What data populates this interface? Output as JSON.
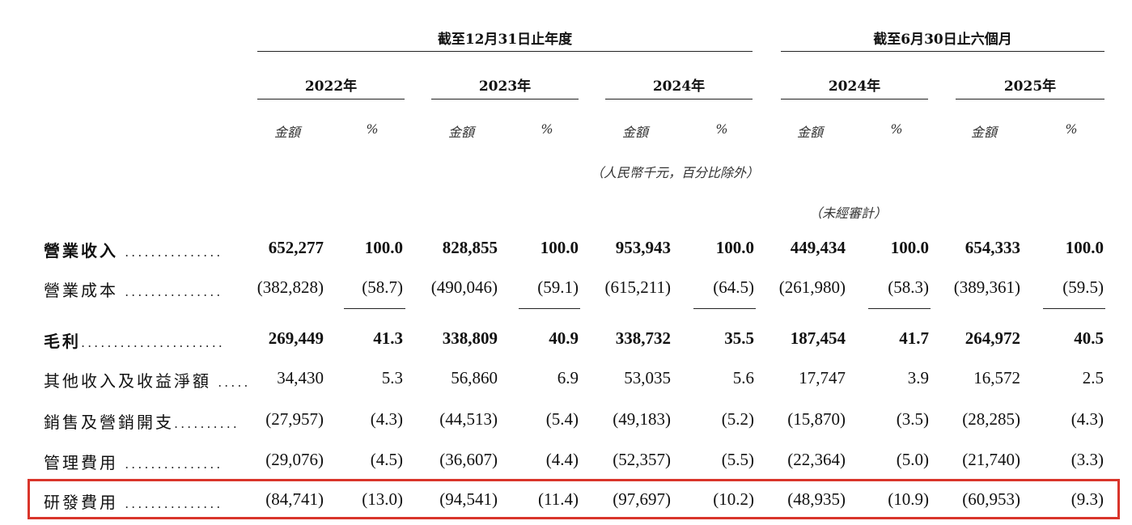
{
  "headers": {
    "group_annual": "截至12月31日止年度",
    "group_half": "截至6月30日止六個月",
    "years": [
      "2022年",
      "2023年",
      "2024年",
      "2024年",
      "2025年"
    ],
    "amount_label": "金額",
    "percent_label": "%",
    "currency_note": "（人民幣千元，百分比除外）",
    "unaudited_note": "（未經審計）"
  },
  "rows": [
    {
      "label": "營業收入",
      "bold": true,
      "values": [
        "652,277",
        "100.0",
        "828,855",
        "100.0",
        "953,943",
        "100.0",
        "449,434",
        "100.0",
        "654,333",
        "100.0"
      ]
    },
    {
      "label": "營業成本",
      "bold": false,
      "values": [
        "(382,828)",
        "(58.7)",
        "(490,046)",
        "(59.1)",
        "(615,211)",
        "(64.5)",
        "(261,980)",
        "(58.3)",
        "(389,361)",
        "(59.5)"
      ]
    },
    {
      "label": "毛利",
      "bold": true,
      "values": [
        "269,449",
        "41.3",
        "338,809",
        "40.9",
        "338,732",
        "35.5",
        "187,454",
        "41.7",
        "264,972",
        "40.5"
      ]
    },
    {
      "label": "其他收入及收益淨額",
      "bold": false,
      "values": [
        "34,430",
        "5.3",
        "56,860",
        "6.9",
        "53,035",
        "5.6",
        "17,747",
        "3.9",
        "16,572",
        "2.5"
      ]
    },
    {
      "label": "銷售及營銷開支",
      "bold": false,
      "values": [
        "(27,957)",
        "(4.3)",
        "(44,513)",
        "(5.4)",
        "(49,183)",
        "(5.2)",
        "(15,870)",
        "(3.5)",
        "(28,285)",
        "(4.3)"
      ]
    },
    {
      "label": "管理費用",
      "bold": false,
      "values": [
        "(29,076)",
        "(4.5)",
        "(36,607)",
        "(4.4)",
        "(52,357)",
        "(5.5)",
        "(22,364)",
        "(5.0)",
        "(21,740)",
        "(3.3)"
      ]
    },
    {
      "label": "研發費用",
      "bold": false,
      "values": [
        "(84,741)",
        "(13.0)",
        "(94,541)",
        "(11.4)",
        "(97,697)",
        "(10.2)",
        "(48,935)",
        "(10.9)",
        "(60,953)",
        "(9.3)"
      ]
    }
  ],
  "highlight_color": "#d9352b"
}
